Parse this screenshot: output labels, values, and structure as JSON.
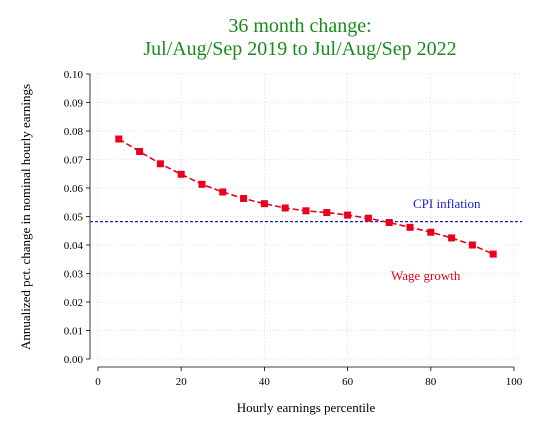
{
  "chart_data": {
    "type": "line",
    "title": [
      "36 month change:",
      "Jul/Aug/Sep 2019 to Jul/Aug/Sep 2022"
    ],
    "xlabel": "Hourly earnings percentile",
    "ylabel": "Annualized pct. change in nominal hourly earnings",
    "xlim": [
      0,
      100
    ],
    "ylim": [
      0.0,
      0.1
    ],
    "x_ticks": [
      "0",
      "20",
      "40",
      "60",
      "80",
      "100"
    ],
    "y_ticks": [
      "0.00",
      "0.01",
      "0.02",
      "0.03",
      "0.04",
      "0.05",
      "0.06",
      "0.07",
      "0.08",
      "0.09",
      "0.10"
    ],
    "grid": true,
    "series": [
      {
        "name": "Wage growth",
        "color": "#e8001c",
        "marker": "square",
        "line_style": "dashed",
        "x": [
          5,
          10,
          15,
          20,
          25,
          30,
          35,
          40,
          45,
          50,
          55,
          60,
          65,
          70,
          75,
          80,
          85,
          90,
          95
        ],
        "values": [
          0.0772,
          0.0728,
          0.0685,
          0.0648,
          0.0613,
          0.0586,
          0.0563,
          0.0545,
          0.053,
          0.052,
          0.0514,
          0.0505,
          0.0494,
          0.0479,
          0.0462,
          0.0445,
          0.0425,
          0.04,
          0.0368
        ]
      }
    ],
    "reference_lines": [
      {
        "name": "CPI inflation",
        "y": 0.0482,
        "color": "#1c1cc8",
        "line_style": "dashed"
      }
    ],
    "annotations": [
      {
        "text": "CPI inflation",
        "color": "#1c1cc8"
      },
      {
        "text": "Wage growth",
        "color": "#e8001c"
      }
    ]
  }
}
